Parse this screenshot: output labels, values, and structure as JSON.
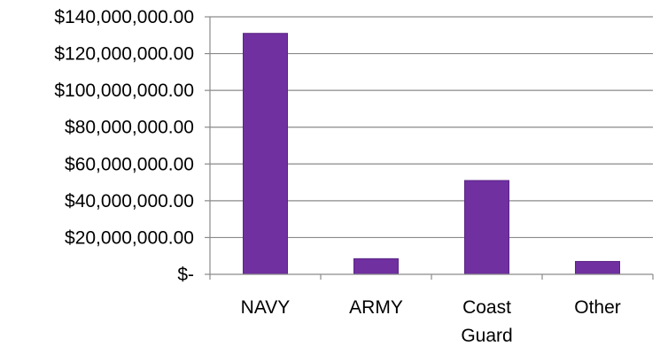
{
  "chart_data": {
    "type": "bar",
    "categories": [
      "NAVY",
      "ARMY",
      "Coast Guard",
      "Other"
    ],
    "category_label_lines": [
      [
        "NAVY"
      ],
      [
        "ARMY"
      ],
      [
        "Coast",
        "Guard"
      ],
      [
        "Other"
      ]
    ],
    "values": [
      131000000,
      8500000,
      51000000,
      7000000
    ],
    "ylim": [
      0,
      140000000
    ],
    "y_ticks": [
      0,
      20000000,
      40000000,
      60000000,
      80000000,
      100000000,
      120000000,
      140000000
    ],
    "y_tick_labels": [
      "$-",
      "$20,000,000.00",
      "$40,000,000.00",
      "$60,000,000.00",
      "$80,000,000.00",
      "$100,000,000.00",
      "$120,000,000.00",
      "$140,000,000.00"
    ],
    "title": "",
    "xlabel": "",
    "ylabel": "",
    "grid": true,
    "legend": "none",
    "colors": {
      "bar": "#7030a0",
      "bar_edge": "#5b2585",
      "grid": "#8a8a8a",
      "axis": "#8a8a8a"
    }
  }
}
